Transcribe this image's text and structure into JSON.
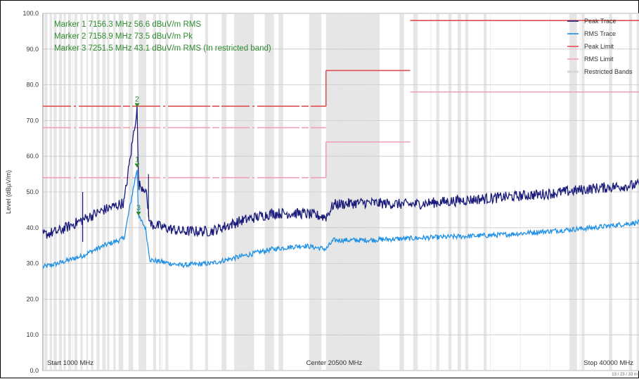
{
  "colors": {
    "peak_trace": "#1a1a7a",
    "rms_trace": "#1e90e6",
    "peak_limit": "#e05050",
    "rms_limit": "#f0a0b4",
    "restricted": "#e2e2e2",
    "marker": "#2e8b2e"
  },
  "markers": [
    {
      "id": "1",
      "text": "Marker 1 7156.3 MHz 56.6 dBuV/m RMS",
      "freq": 7156.3,
      "level": 56.6
    },
    {
      "id": "2",
      "text": "Marker 2 7158.9 MHz 73.5 dBuV/m Pk",
      "freq": 7158.9,
      "level": 73.5
    },
    {
      "id": "3",
      "text": "Marker 3 7251.5 MHz 43.1 dBuV/m RMS (In restricted band)",
      "freq": 7251.5,
      "level": 43.1
    }
  ],
  "axis": {
    "x_start_label": "Start 1000 MHz",
    "x_center_label": "Center 20500 MHz",
    "x_stop_label": "Stop 40000 MHz",
    "corner_text": "13 / 23 / 33 m"
  },
  "legend": [
    {
      "label": "Peak Trace",
      "color": "#1a1a7a"
    },
    {
      "label": "RMS Trace",
      "color": "#1e90e6"
    },
    {
      "label": "Peak Limit",
      "color": "#e05050"
    },
    {
      "label": "RMS Limit",
      "color": "#f0a0b4"
    },
    {
      "label": "Restricted Bands",
      "color": "#d8d8d8"
    }
  ],
  "chart_data": {
    "type": "line",
    "title": "",
    "xlabel": "",
    "ylabel": "Level (dBµV/m)",
    "xlim": [
      1000,
      40000
    ],
    "ylim": [
      0,
      100
    ],
    "grid": true,
    "legend_position": "top-right",
    "y_ticks": [
      "0.0",
      "10.0",
      "20.0",
      "30.0",
      "40.0",
      "50.0",
      "60.0",
      "70.0",
      "80.0",
      "90.0",
      "100.0"
    ],
    "series": [
      {
        "name": "Peak Trace",
        "x": [
          1000,
          2000,
          3500,
          5000,
          6300,
          7159,
          7250,
          7700,
          8000,
          10000,
          12000,
          14000,
          16000,
          18000,
          19500,
          20000,
          22000,
          25000,
          28000,
          31000,
          34000,
          37000,
          40000
        ],
        "y": [
          38,
          39,
          42,
          45,
          47,
          73.5,
          52,
          51,
          41,
          39,
          39,
          42,
          44,
          44,
          43,
          46.5,
          47,
          46.5,
          47.5,
          48.5,
          49.5,
          51,
          52
        ]
      },
      {
        "name": "RMS Trace",
        "x": [
          1000,
          2000,
          3500,
          5000,
          6300,
          7156,
          7250,
          7700,
          8000,
          10000,
          12000,
          14000,
          16000,
          18000,
          19500,
          20000,
          22000,
          25000,
          28000,
          31000,
          34000,
          37000,
          40000
        ],
        "y": [
          29,
          30,
          32,
          35,
          37,
          56.6,
          43,
          40,
          31,
          29.5,
          30,
          32,
          34,
          35,
          34,
          36.5,
          36.5,
          37,
          37.5,
          38,
          39,
          40,
          41.5
        ]
      },
      {
        "name": "Peak Limit",
        "segments": [
          {
            "x": [
              1000,
              19500
            ],
            "y": 74
          },
          {
            "x": [
              19500,
              25000
            ],
            "y": 84
          },
          {
            "x": [
              25000,
              40000
            ],
            "y": 98
          }
        ]
      },
      {
        "name": "RMS Limit",
        "segments": [
          {
            "x": [
              1000,
              19500
            ],
            "y": 54
          },
          {
            "x": [
              1000,
              19500
            ],
            "y": 68
          },
          {
            "x": [
              19500,
              25000
            ],
            "y": 64
          },
          {
            "x": [
              25000,
              40000
            ],
            "y": 78
          }
        ]
      }
    ]
  }
}
